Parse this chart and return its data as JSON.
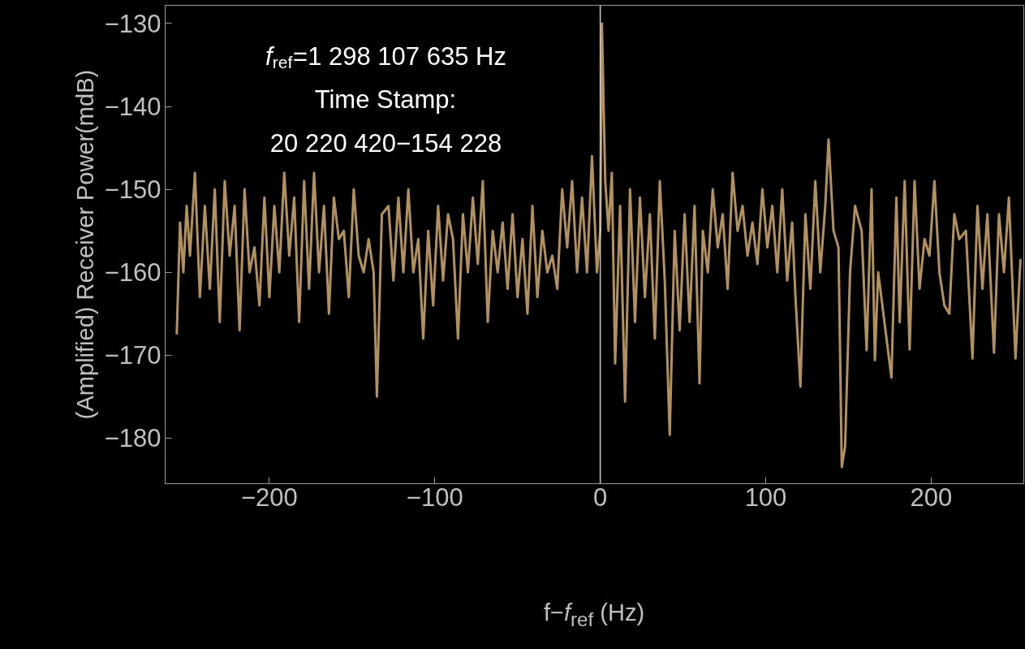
{
  "chart_data": {
    "type": "line",
    "xlabel": "f−f$_{ref}$ (Hz)",
    "ylabel": "(Amplified) Receiver Power(mdB)",
    "annotations": [
      "f$_{ref}$=1 298 107 635 Hz",
      "Time Stamp:",
      "20 220 420−154 228"
    ],
    "x": [
      -256,
      -254,
      -252,
      -250,
      -248,
      -245,
      -242,
      -239,
      -236,
      -233,
      -230,
      -227,
      -224,
      -221,
      -218,
      -215,
      -212,
      -209,
      -206,
      -203,
      -200,
      -197,
      -194,
      -191,
      -188,
      -185,
      -182,
      -179,
      -176,
      -173,
      -170,
      -167,
      -164,
      -161,
      -158,
      -155,
      -152,
      -149,
      -146,
      -143,
      -140,
      -137,
      -135,
      -132,
      -128,
      -125,
      -122,
      -119,
      -116,
      -113,
      -110,
      -107,
      -104,
      -101,
      -98,
      -95,
      -92,
      -89,
      -86,
      -83,
      -80,
      -77,
      -74,
      -71,
      -68,
      -65,
      -62,
      -59,
      -56,
      -53,
      -50,
      -47,
      -44,
      -41,
      -38,
      -35,
      -32,
      -29,
      -26,
      -23,
      -20,
      -17,
      -14,
      -11,
      -8,
      -5,
      -2,
      0,
      1,
      3,
      5,
      7,
      9,
      12,
      15,
      18,
      21,
      24,
      27,
      30,
      33,
      36,
      39,
      42,
      45,
      48,
      51,
      54,
      57,
      60,
      62,
      65,
      68,
      71,
      74,
      77,
      80,
      83,
      86,
      89,
      92,
      95,
      98,
      101,
      104,
      107,
      110,
      113,
      116,
      118,
      121,
      124,
      127,
      130,
      133,
      136,
      138,
      141,
      144,
      146,
      148,
      151,
      154,
      158,
      161,
      164,
      166,
      168,
      176,
      179,
      181,
      184,
      187,
      190,
      193,
      196,
      199,
      202,
      205,
      208,
      211,
      214,
      217,
      221,
      225,
      228,
      231,
      234,
      238,
      241,
      244,
      247,
      251,
      254
    ],
    "values": [
      -167.5,
      -154,
      -160,
      -152,
      -158,
      -148,
      -163,
      -152,
      -162,
      -150,
      -166,
      -149,
      -158,
      -152,
      -167,
      -150,
      -160,
      -157,
      -164,
      -151,
      -163,
      -152,
      -160,
      -148,
      -158,
      -151,
      -166,
      -149,
      -162,
      -148,
      -160,
      -152,
      -165,
      -151,
      -156,
      -155,
      -163,
      -150,
      -158,
      -160,
      -156,
      -160,
      -175,
      -153,
      -152,
      -161,
      -151,
      -160,
      -150,
      -160,
      -156,
      -168,
      -155,
      -164,
      -152,
      -161,
      -153,
      -156,
      -168,
      -153,
      -160,
      -151,
      -159,
      -149,
      -166,
      -155,
      -160,
      -154,
      -162,
      -153,
      -163,
      -156,
      -165,
      -152,
      -163,
      -155,
      -160,
      -158,
      -162,
      -150,
      -157,
      -149,
      -160,
      -151,
      -160,
      -146,
      -160,
      -155,
      -130,
      -149,
      -155,
      -148,
      -171,
      -152,
      -175.6,
      -150,
      -166,
      -151,
      -163,
      -153,
      -168,
      -149,
      -161,
      -179.6,
      -155,
      -167,
      -153,
      -166,
      -152,
      -173.4,
      -155,
      -160,
      -150,
      -157,
      -153,
      -162,
      -148,
      -155,
      -152,
      -158,
      -154,
      -159,
      -150,
      -157,
      -152,
      -160,
      -150,
      -161,
      -154,
      -163,
      -173.8,
      -153,
      -162,
      -149,
      -160,
      -152,
      -144,
      -155,
      -157,
      -183.5,
      -181,
      -160,
      -152,
      -155,
      -169.4,
      -150,
      -170.6,
      -160,
      -172.7,
      -151,
      -166,
      -149,
      -169.3,
      -149,
      -162,
      -156,
      -158,
      -149,
      -160,
      -164,
      -165,
      -153,
      -156,
      -155,
      -170.4,
      -152,
      -162,
      -153,
      -169.7,
      -153,
      -160,
      -151,
      -170.4,
      -158.4
    ],
    "color": "#b3915e",
    "xlim": [
      -263,
      256
    ],
    "ylim": [
      -185.5,
      -127.8
    ],
    "xticks": [
      -200,
      -100,
      0,
      100,
      200
    ],
    "yticks": [
      -180,
      -170,
      -160,
      -150,
      -140,
      -130
    ],
    "ref_lines": [
      {
        "axis": "x",
        "value": 0,
        "color": "#c8c8c8"
      }
    ],
    "grid": false
  }
}
